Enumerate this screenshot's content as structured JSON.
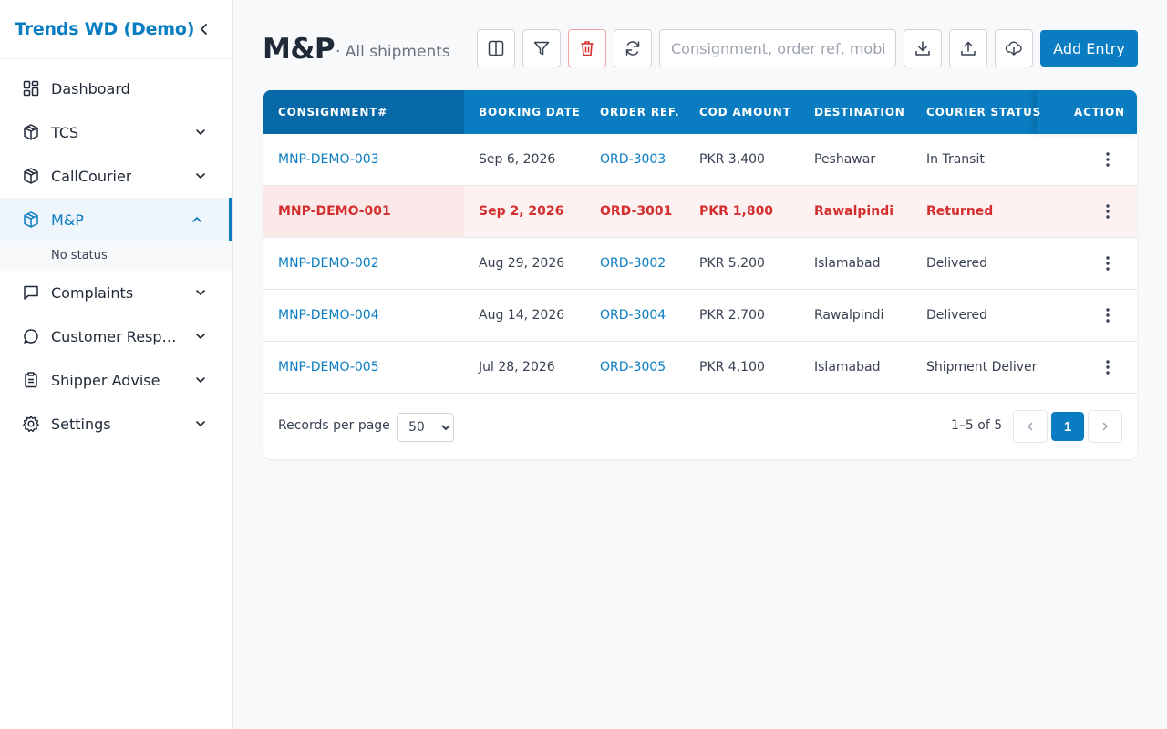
{
  "sidebar": {
    "brand": "Trends WD (Demo)",
    "items": [
      {
        "label": "Dashboard",
        "icon": "dashboard-icon"
      },
      {
        "label": "TCS",
        "icon": "package-icon"
      },
      {
        "label": "CallCourier",
        "icon": "package-icon"
      },
      {
        "label": "M&P",
        "icon": "package-icon",
        "active": true,
        "sub": [
          "No status"
        ]
      },
      {
        "label": "Complaints",
        "icon": "message-square-icon"
      },
      {
        "label": "Customer Responses",
        "icon": "message-circle-icon"
      },
      {
        "label": "Shipper Advise",
        "icon": "clipboard-icon"
      },
      {
        "label": "Settings",
        "icon": "gear-icon"
      }
    ]
  },
  "header": {
    "title": "M&P",
    "subtitle": "· All shipments",
    "search_placeholder": "Consignment, order ref, mobile",
    "add_label": "Add Entry"
  },
  "table": {
    "columns": [
      "CONSIGNMENT#",
      "BOOKING DATE",
      "ORDER REF.",
      "COD AMOUNT",
      "DESTINATION",
      "COURIER STATUS",
      "ACTION"
    ],
    "rows": [
      {
        "consignment": "MNP-DEMO-003",
        "date": "Sep 6, 2026",
        "order": "ORD-3003",
        "cod": "PKR 3,400",
        "destination": "Peshawar",
        "status": "In Transit"
      },
      {
        "consignment": "MNP-DEMO-001",
        "date": "Sep 2, 2026",
        "order": "ORD-3001",
        "cod": "PKR 1,800",
        "destination": "Rawalpindi",
        "status": "Returned"
      },
      {
        "consignment": "MNP-DEMO-002",
        "date": "Aug 29, 2026",
        "order": "ORD-3002",
        "cod": "PKR 5,200",
        "destination": "Islamabad",
        "status": "Delivered"
      },
      {
        "consignment": "MNP-DEMO-004",
        "date": "Aug 14, 2026",
        "order": "ORD-3004",
        "cod": "PKR 2,700",
        "destination": "Rawalpindi",
        "status": "Delivered"
      },
      {
        "consignment": "MNP-DEMO-005",
        "date": "Jul 28, 2026",
        "order": "ORD-3005",
        "cod": "PKR 4,100",
        "destination": "Islamabad",
        "status": "Shipment Delivered"
      }
    ]
  },
  "footer": {
    "rpp_label": "Records per page",
    "rpp_value": "50",
    "range": "1–5 of 5",
    "current_page": "1"
  },
  "colors": {
    "accent": "#0a7cc1",
    "returned": "#d32f2f"
  }
}
